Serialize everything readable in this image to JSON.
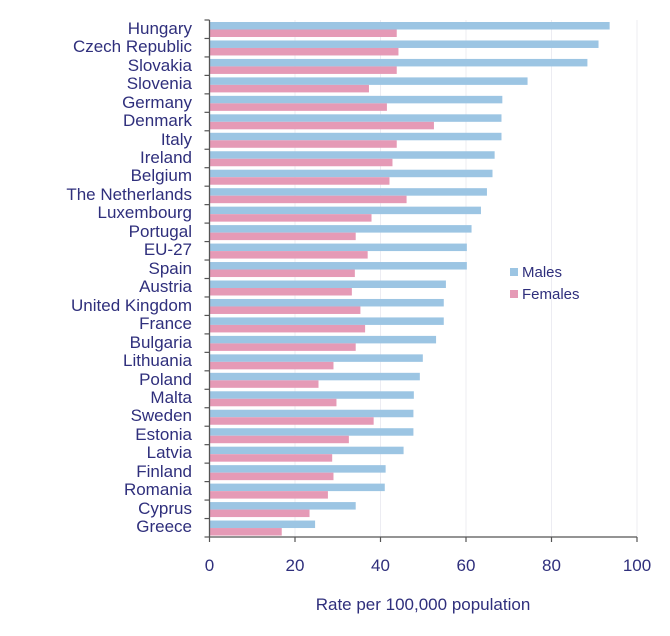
{
  "chart_data": {
    "type": "bar",
    "orientation": "horizontal",
    "title": "",
    "xlabel": "Rate per 100,000 population",
    "ylabel": "",
    "xlim": [
      0,
      100
    ],
    "xticks": [
      "0",
      "20",
      "40",
      "60",
      "80",
      "100"
    ],
    "grid": "vertical",
    "legend_position": "right-middle",
    "categories": [
      "Hungary",
      "Czech Republic",
      "Slovakia",
      "Slovenia",
      "Germany",
      "Denmark",
      "Italy",
      "Ireland",
      "Belgium",
      "The Netherlands",
      "Luxembourg",
      "Portugal",
      "EU-27",
      "Spain",
      "Austria",
      "United Kingdom",
      "France",
      "Bulgaria",
      "Lithuania",
      "Poland",
      "Malta",
      "Sweden",
      "Estonia",
      "Latvia",
      "Finland",
      "Romania",
      "Cyprus",
      "Greece"
    ],
    "series": [
      {
        "name": "Males",
        "color": "#9cc5e3",
        "values": [
          93.6,
          91.0,
          88.4,
          74.4,
          68.5,
          68.3,
          68.3,
          66.7,
          66.2,
          64.9,
          63.5,
          61.3,
          60.2,
          60.2,
          55.3,
          54.8,
          54.8,
          53.0,
          49.9,
          49.2,
          47.8,
          47.7,
          47.7,
          45.4,
          41.2,
          41.0,
          34.2,
          24.7
        ]
      },
      {
        "name": "Females",
        "color": "#e59ab6",
        "values": [
          43.8,
          44.2,
          43.8,
          37.3,
          41.5,
          52.5,
          43.8,
          42.8,
          42.1,
          46.1,
          37.9,
          34.2,
          37.0,
          34.0,
          33.3,
          35.3,
          36.4,
          34.2,
          29.0,
          25.5,
          29.7,
          38.4,
          32.6,
          28.7,
          29.0,
          27.7,
          23.4,
          16.9
        ]
      }
    ]
  },
  "legend": {
    "males": "Males",
    "females": "Females"
  },
  "axis": {
    "xlabel": "Rate per 100,000 population"
  }
}
